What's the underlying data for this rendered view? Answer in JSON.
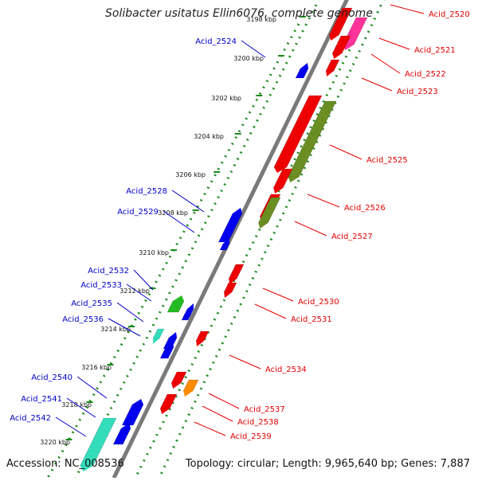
{
  "title": "Solibacter usitatus Ellin6076, complete genome",
  "accession": "Accession: NC_008536",
  "topology": "Topology: circular; Length: 9,965,640 bp; Genes: 7,887",
  "colors": {
    "backbone": "#7a7a7a",
    "dots": "#1e8a1e",
    "right_label": "#e00000",
    "left_label": "#0000c8",
    "red_gene": "#ee0000",
    "blue_gene": "#0000ee",
    "olive_gene": "#6b8e23",
    "green_gene": "#22bb22",
    "orange_gene": "#ff8c00",
    "pink_gene": "#ff3399",
    "cyan_gene": "#33ddbb"
  },
  "ticks": [
    "3198 kbp",
    "3200 kbp",
    "3202 kbp",
    "3204 kbp",
    "3206 kbp",
    "3208 kbp",
    "3210 kbp",
    "3212 kbp",
    "3214 kbp",
    "3216 kbp",
    "3218 kbp",
    "3220 kbp"
  ],
  "genes": [
    {
      "name": "Acid_2520",
      "side": "right",
      "color": "pink_gene"
    },
    {
      "name": "Acid_2521",
      "side": "right",
      "color": "red_gene"
    },
    {
      "name": "Acid_2522",
      "side": "right",
      "color": "red_gene"
    },
    {
      "name": "Acid_2523",
      "side": "right",
      "color": "red_gene"
    },
    {
      "name": "Acid_2524",
      "side": "left",
      "color": "blue_gene"
    },
    {
      "name": "Acid_2525",
      "side": "right",
      "color": "olive_gene"
    },
    {
      "name": "Acid_2526",
      "side": "right",
      "color": "red_gene"
    },
    {
      "name": "Acid_2527",
      "side": "right",
      "color": "olive_gene"
    },
    {
      "name": "Acid_2528",
      "side": "left",
      "color": "blue_gene"
    },
    {
      "name": "Acid_2529",
      "side": "left",
      "color": "blue_gene"
    },
    {
      "name": "Acid_2530",
      "side": "right",
      "color": "red_gene"
    },
    {
      "name": "Acid_2531",
      "side": "right",
      "color": "red_gene"
    },
    {
      "name": "Acid_2532",
      "side": "left",
      "color": "green_gene"
    },
    {
      "name": "Acid_2533",
      "side": "left",
      "color": "blue_gene"
    },
    {
      "name": "Acid_2534",
      "side": "right",
      "color": "red_gene"
    },
    {
      "name": "Acid_2535",
      "side": "left",
      "color": "cyan_gene"
    },
    {
      "name": "Acid_2536",
      "side": "left",
      "color": "blue_gene"
    },
    {
      "name": "Acid_2537",
      "side": "right",
      "color": "orange_gene"
    },
    {
      "name": "Acid_2538",
      "side": "right",
      "color": "red_gene"
    },
    {
      "name": "Acid_2539",
      "side": "right",
      "color": "red_gene"
    },
    {
      "name": "Acid_2540",
      "side": "left",
      "color": "blue_gene"
    },
    {
      "name": "Acid_2541",
      "side": "left",
      "color": "blue_gene"
    },
    {
      "name": "Acid_2542",
      "side": "left",
      "color": "cyan_gene"
    }
  ]
}
